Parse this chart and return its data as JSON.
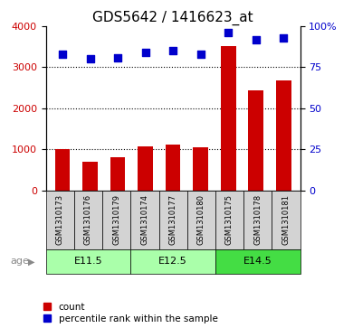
{
  "title": "GDS5642 / 1416623_at",
  "samples": [
    "GSM1310173",
    "GSM1310176",
    "GSM1310179",
    "GSM1310174",
    "GSM1310177",
    "GSM1310180",
    "GSM1310175",
    "GSM1310178",
    "GSM1310181"
  ],
  "counts": [
    1000,
    700,
    800,
    1070,
    1120,
    1050,
    3520,
    2430,
    2680
  ],
  "percentile_ranks": [
    83,
    80,
    81,
    84,
    85,
    83,
    96,
    92,
    93
  ],
  "age_groups": [
    {
      "label": "E11.5",
      "start": 0,
      "end": 3,
      "color": "#AAFFAA"
    },
    {
      "label": "E12.5",
      "start": 3,
      "end": 6,
      "color": "#AAFFAA"
    },
    {
      "label": "E14.5",
      "start": 6,
      "end": 9,
      "color": "#44DD44"
    }
  ],
  "bar_color": "#CC0000",
  "dot_color": "#0000CC",
  "ylim_left": [
    0,
    4000
  ],
  "ylim_right": [
    0,
    100
  ],
  "yticks_left": [
    0,
    1000,
    2000,
    3000,
    4000
  ],
  "yticks_right": [
    0,
    25,
    50,
    75,
    100
  ],
  "ytick_labels_right": [
    "0",
    "25",
    "50",
    "75",
    "100%"
  ],
  "grid_values": [
    1000,
    2000,
    3000
  ],
  "title_fontsize": 11,
  "label_fontsize": 8,
  "tick_fontsize": 8,
  "sample_fontsize": 6,
  "age_label": "age"
}
